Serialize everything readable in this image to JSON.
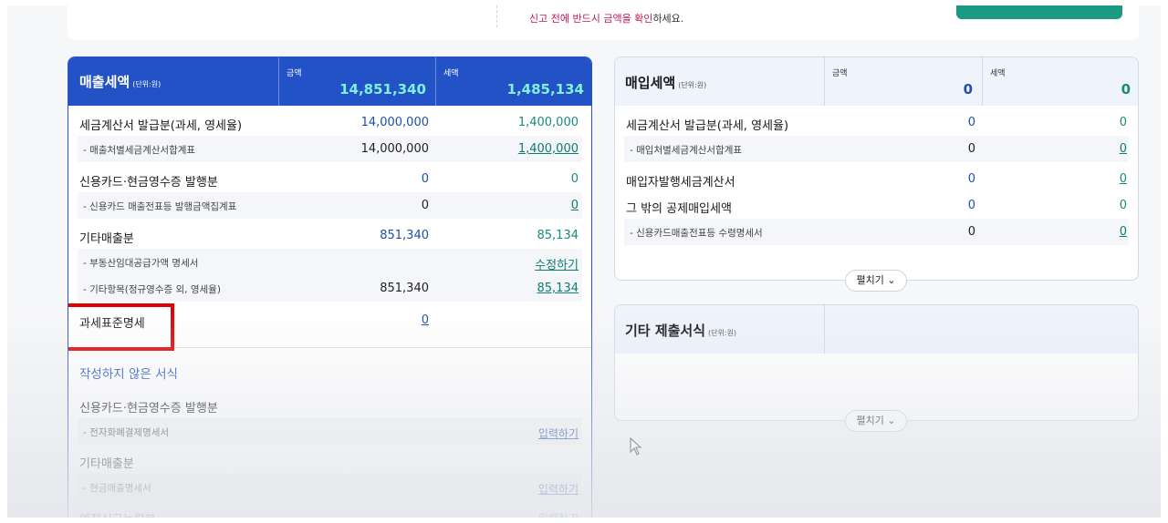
{
  "top_notice": {
    "warn_part": "신고 전에 반드시 금액을 확인",
    "rest_part": "하세요."
  },
  "sales": {
    "title": "매출세액",
    "unit": "(단위:원)",
    "amount_label": "금액",
    "tax_label": "세액",
    "amount_total": "14,851,340",
    "tax_total": "1,485,134",
    "rows": [
      {
        "label": "세금계산서 발급분(과세, 영세율)",
        "amount": "14,000,000",
        "tax": "1,400,000"
      },
      {
        "label": "- 매출처별세금계산서합계표",
        "amount": "14,000,000",
        "tax": "1,400,000"
      },
      {
        "label": "신용카드·현금영수증 발행분",
        "amount": "0",
        "tax": "0"
      },
      {
        "label": "- 신용카드 매출전표등 발행금액집계표",
        "amount": "0",
        "tax": "0"
      },
      {
        "label": "기타매출분",
        "amount": "851,340",
        "tax": "85,134"
      },
      {
        "label": "- 부동산임대공급가액 명세서",
        "amount": "",
        "tax": "수정하기"
      },
      {
        "label": "- 기타항목(정규영수증 외, 영세율)",
        "amount": "851,340",
        "tax": "85,134"
      },
      {
        "label": "과세표준명세",
        "amount": "0",
        "tax": ""
      }
    ],
    "unwritten_title": "작성하지 않은 서식",
    "unwritten_rows": [
      {
        "label": "신용카드·현금영수증 발행분",
        "action": ""
      },
      {
        "label": "- 전자화폐결제명세서",
        "action": "입력하기"
      },
      {
        "label": "기타매출분",
        "action": ""
      },
      {
        "label": "- 현금매출명세서",
        "action": "입력하기"
      },
      {
        "label": "예정신고누락분",
        "action": "입력하기"
      }
    ]
  },
  "purchase": {
    "title": "매입세액",
    "unit": "(단위:원)",
    "amount_label": "금액",
    "tax_label": "세액",
    "amount_total": "0",
    "tax_total": "0",
    "rows": [
      {
        "label": "세금계산서 발급분(과세, 영세율)",
        "amount": "0",
        "tax": "0"
      },
      {
        "label": "- 매입처별세금계산서합계표",
        "amount": "0",
        "tax": "0"
      },
      {
        "label": "매입자발행세금계산서",
        "amount": "0",
        "tax": "0"
      },
      {
        "label": "그 밖의 공제매입세액",
        "amount": "0",
        "tax": "0"
      },
      {
        "label": "- 신용카드매출전표등 수령명세서",
        "amount": "0",
        "tax": "0"
      }
    ],
    "expand_label": "펼치기"
  },
  "other_forms": {
    "title": "기타 제출서식",
    "unit": "(단위:원)",
    "expand_label": "펼치기"
  },
  "colors": {
    "sales_header": "#2352c6",
    "highlight_box": "#e00000",
    "tax_accent": "#1a8a7a"
  }
}
